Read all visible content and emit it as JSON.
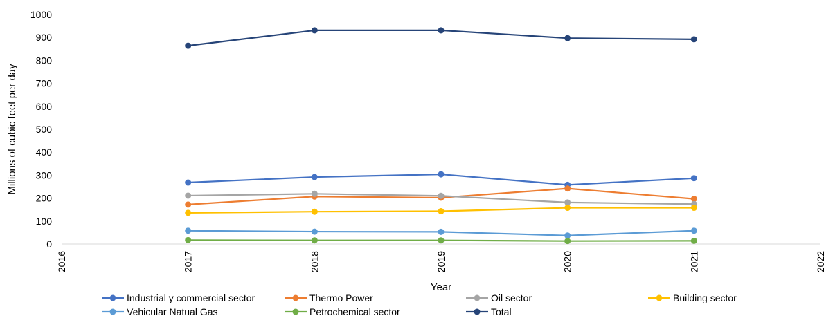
{
  "chart_data": {
    "type": "line",
    "xlabel": "Year",
    "ylabel": "Millions of cubic feet per day",
    "xlim": [
      2016,
      2022
    ],
    "ylim": [
      0,
      1000
    ],
    "x_ticks": [
      2016,
      2017,
      2018,
      2019,
      2020,
      2021,
      2022
    ],
    "y_ticks": [
      0,
      100,
      200,
      300,
      400,
      500,
      600,
      700,
      800,
      900,
      1000
    ],
    "grid": false,
    "legend_position": "bottom",
    "x": [
      2017,
      2018,
      2019,
      2020,
      2021
    ],
    "series": [
      {
        "name": "Industrial y commercial sector",
        "color": "#4472c4",
        "values": [
          268,
          292,
          304,
          258,
          287
        ]
      },
      {
        "name": "Thermo Power",
        "color": "#ed7d31",
        "values": [
          172,
          207,
          202,
          242,
          197
        ]
      },
      {
        "name": "Oil sector",
        "color": "#a5a5a5",
        "values": [
          211,
          219,
          210,
          181,
          174
        ]
      },
      {
        "name": "Building sector",
        "color": "#ffc000",
        "values": [
          136,
          141,
          143,
          158,
          158
        ]
      },
      {
        "name": "Vehicular Natual Gas",
        "color": "#5b9bd5",
        "values": [
          58,
          54,
          53,
          37,
          58
        ]
      },
      {
        "name": "Petrochemical sector",
        "color": "#70ad47",
        "values": [
          17,
          16,
          16,
          13,
          14
        ]
      },
      {
        "name": "Total",
        "color": "#264478",
        "values": [
          864,
          931,
          931,
          897,
          892
        ]
      }
    ]
  }
}
